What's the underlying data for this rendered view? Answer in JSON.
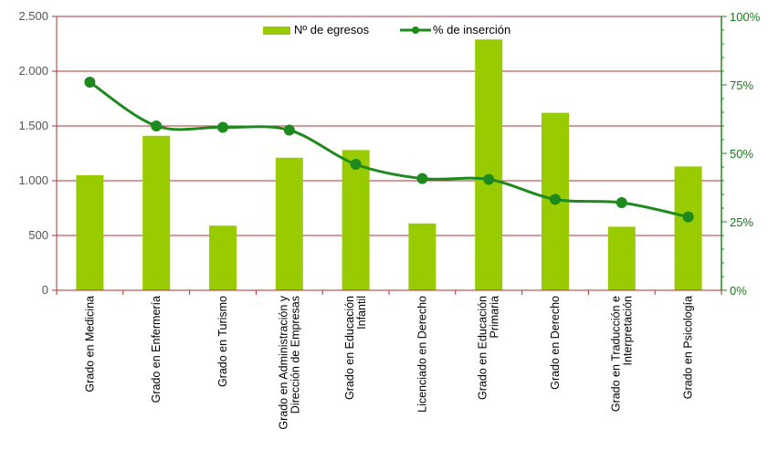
{
  "chart_data": {
    "type": "bar",
    "categories": [
      [
        "Grado en Medicina"
      ],
      [
        "Grado en Enfermería"
      ],
      [
        "Grado en Turismo"
      ],
      [
        "Grado en Administración y",
        "Dirección de Empresas"
      ],
      [
        "Grado en Educación",
        "Infantil"
      ],
      [
        "Licenciado en Derecho"
      ],
      [
        "Grado en Educación",
        "Primaria"
      ],
      [
        "Grado en Derecho"
      ],
      [
        "Grado en Traducción e",
        "Interpretación"
      ],
      [
        "Grado en Psicología"
      ]
    ],
    "series": [
      {
        "name": "Nº de egresos",
        "type": "bar",
        "axis": "left",
        "color": "#99cc00",
        "values": [
          1050,
          1410,
          590,
          1210,
          1280,
          610,
          2290,
          1620,
          580,
          1130
        ]
      },
      {
        "name": "% de inserción",
        "type": "line",
        "axis": "right",
        "color": "#1e8a1e",
        "values": [
          76,
          60,
          59.5,
          58.5,
          46,
          40.8,
          40.5,
          33.2,
          32,
          26.8
        ]
      }
    ],
    "left_axis": {
      "ylim": [
        0,
        2500
      ],
      "ticks": [
        0,
        500,
        1000,
        1500,
        2000,
        2500
      ],
      "tick_labels": [
        "0",
        "500",
        "1.000",
        "1.500",
        "2.000",
        "2.500"
      ]
    },
    "right_axis": {
      "ylim": [
        0,
        100
      ],
      "ticks": [
        0,
        25,
        50,
        75,
        100
      ],
      "tick_labels": [
        "0%",
        "25%",
        "50%",
        "75%",
        "100%"
      ]
    },
    "grid": true,
    "legend_position": "top-center"
  }
}
